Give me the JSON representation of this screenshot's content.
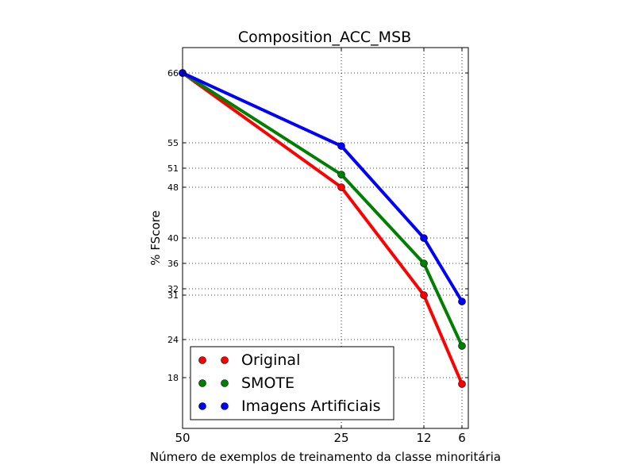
{
  "chart_data": {
    "type": "line",
    "title": "Composition_ACC_MSB",
    "xlabel": "Número de exemplos de treinamento da classe minoritária",
    "ylabel": "% FScore",
    "x": [
      50,
      25,
      12,
      6
    ],
    "xticks": [
      50,
      25,
      12,
      6
    ],
    "x_axis": "reversed",
    "xlim": [
      50,
      5
    ],
    "yticks": [
      66,
      55,
      51,
      48,
      40,
      36,
      32,
      31,
      24,
      18
    ],
    "ylim": [
      10,
      70
    ],
    "grid": true,
    "legend_position": "lower-left",
    "series": [
      {
        "name": "Original",
        "color": "#ff0000",
        "values": [
          66,
          48,
          31,
          17
        ]
      },
      {
        "name": "SMOTE",
        "color": "#008000",
        "values": [
          66,
          50,
          36,
          23
        ]
      },
      {
        "name": "Imagens Artificiais",
        "color": "#0000ff",
        "values": [
          66,
          54.5,
          40,
          30
        ]
      }
    ]
  }
}
